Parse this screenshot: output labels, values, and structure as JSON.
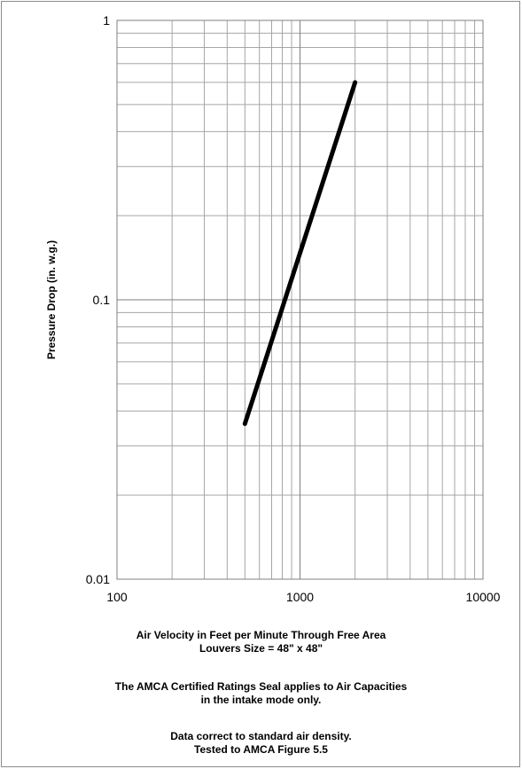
{
  "chart_data": {
    "type": "line",
    "title": "",
    "xlabel": "Air Velocity in Feet per Minute Through Free Area",
    "ylabel": "Pressure Drop (in. w.g.)",
    "x_scale": "log",
    "y_scale": "log",
    "xlim": [
      100,
      10000
    ],
    "ylim": [
      0.01,
      1
    ],
    "x_ticks": [
      "100",
      "1000",
      "10000"
    ],
    "y_ticks": [
      "0.01",
      "0.1",
      "1"
    ],
    "grid": true,
    "legend": "none",
    "line_color": "#000000",
    "grid_color": "#a6a6a6",
    "major_grid_color": "#7f7f7f",
    "series": [
      {
        "x": [
          500,
          2000
        ],
        "y": [
          0.036,
          0.6
        ]
      }
    ]
  },
  "notes": {
    "louver_size": "Louvers Size = 48\" x 48\"",
    "amca_line1": "The AMCA Certified Ratings Seal applies to Air Capacities",
    "amca_line2": "in the intake mode only.",
    "density": "Data correct to standard air density.",
    "tested": "Tested to AMCA Figure 5.5"
  }
}
